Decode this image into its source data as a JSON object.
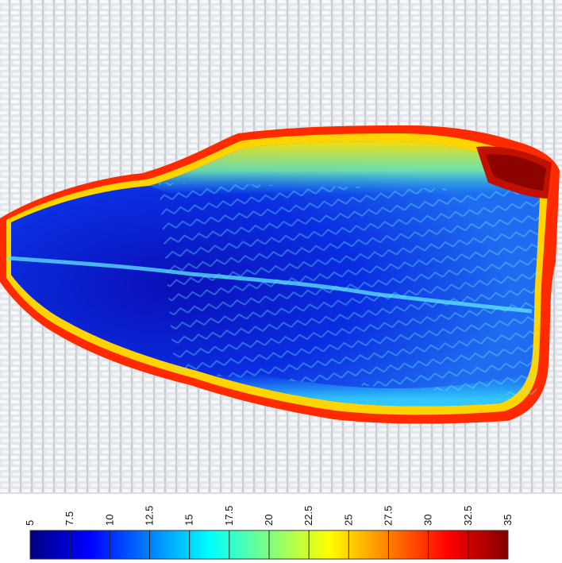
{
  "image": {
    "subject": "fish-fillet-heatmap-overlay",
    "background": "woven-conveyor-mesh"
  },
  "colorbar": {
    "min": 5,
    "max": 35,
    "ticks": [
      "5",
      "7.5",
      "10",
      "12.5",
      "15",
      "17.5",
      "20",
      "22.5",
      "25",
      "27.5",
      "30",
      "32.5",
      "35"
    ],
    "colormap": "jet",
    "colors": [
      "#00007f",
      "#0000ff",
      "#007fff",
      "#00ffff",
      "#7fff7f",
      "#ffff00",
      "#ff7f00",
      "#ff0000",
      "#7f0000"
    ]
  }
}
